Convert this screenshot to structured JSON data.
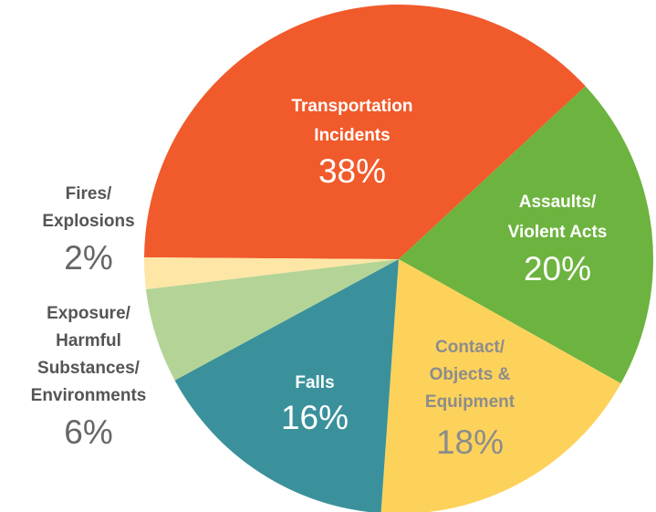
{
  "chart_data": {
    "type": "pie",
    "categories": [
      [
        "Transportation",
        "Incidents"
      ],
      [
        "Assaults/",
        "Violent Acts"
      ],
      [
        "Contact/",
        "Objects &",
        "Equipment"
      ],
      [
        "Falls"
      ],
      [
        "Exposure/",
        "Harmful",
        "Substances/",
        "Environments"
      ],
      [
        "Fires/",
        "Explosions"
      ]
    ],
    "values": [
      38,
      20,
      18,
      16,
      6,
      2
    ],
    "value_labels": [
      "38%",
      "20%",
      "18%",
      "16%",
      "6%",
      "2%"
    ],
    "colors": [
      "#f15a2b",
      "#6db33f",
      "#fdd25b",
      "#3a919b",
      "#b3d496",
      "#fde6a6"
    ]
  }
}
